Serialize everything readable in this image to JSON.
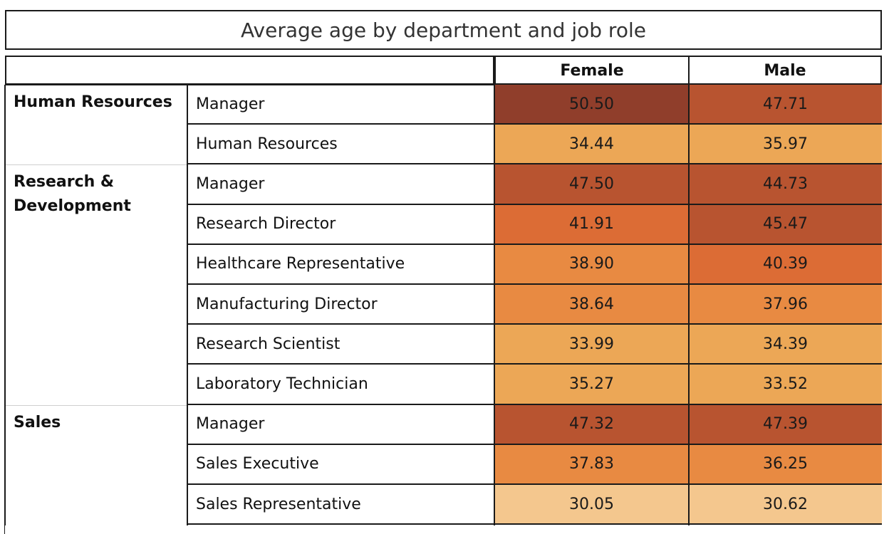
{
  "chart_data": {
    "type": "heatmap",
    "title": "Average age by department and job role",
    "columns": [
      "Female",
      "Male"
    ],
    "departments": [
      {
        "name": "Human Resources",
        "rows": [
          {
            "role": "Manager",
            "Female": "50.50",
            "Male": "47.71"
          },
          {
            "role": "Human Resources",
            "Female": "34.44",
            "Male": "35.97"
          }
        ]
      },
      {
        "name": "Research & Development",
        "rows": [
          {
            "role": "Manager",
            "Female": "47.50",
            "Male": "44.73"
          },
          {
            "role": "Research Director",
            "Female": "41.91",
            "Male": "45.47"
          },
          {
            "role": "Healthcare Representative",
            "Female": "38.90",
            "Male": "40.39"
          },
          {
            "role": "Manufacturing Director",
            "Female": "38.64",
            "Male": "37.96"
          },
          {
            "role": "Research Scientist",
            "Female": "33.99",
            "Male": "34.39"
          },
          {
            "role": "Laboratory Technician",
            "Female": "35.27",
            "Male": "33.52"
          }
        ]
      },
      {
        "name": "Sales",
        "rows": [
          {
            "role": "Manager",
            "Female": "47.32",
            "Male": "47.39"
          },
          {
            "role": "Sales Executive",
            "Female": "37.83",
            "Male": "36.25"
          },
          {
            "role": "Sales Representative",
            "Female": "30.05",
            "Male": "30.62"
          }
        ]
      }
    ],
    "color_scale": {
      "low": "#f4c78e",
      "mid_low": "#eca756",
      "mid": "#e88a42",
      "mid_high": "#dc6c35",
      "high_low": "#b85430",
      "high": "#903e2b"
    }
  }
}
